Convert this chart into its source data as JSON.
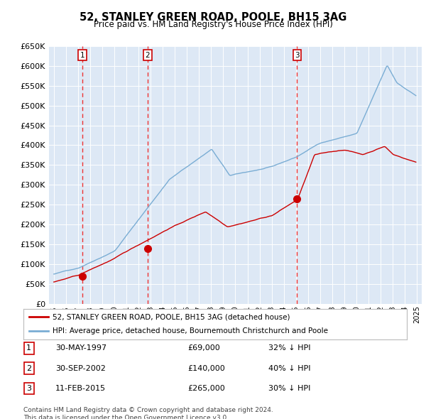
{
  "title": "52, STANLEY GREEN ROAD, POOLE, BH15 3AG",
  "subtitle": "Price paid vs. HM Land Registry's House Price Index (HPI)",
  "legend_property": "52, STANLEY GREEN ROAD, POOLE, BH15 3AG (detached house)",
  "legend_hpi": "HPI: Average price, detached house, Bournemouth Christchurch and Poole",
  "footer": "Contains HM Land Registry data © Crown copyright and database right 2024.\nThis data is licensed under the Open Government Licence v3.0.",
  "sales": [
    {
      "num": 1,
      "date_num": 1997.37,
      "price": 69000,
      "label": "30-MAY-1997",
      "pct": "32% ↓ HPI"
    },
    {
      "num": 2,
      "date_num": 2002.75,
      "price": 140000,
      "label": "30-SEP-2002",
      "pct": "40% ↓ HPI"
    },
    {
      "num": 3,
      "date_num": 2015.1,
      "price": 265000,
      "label": "11-FEB-2015",
      "pct": "30% ↓ HPI"
    }
  ],
  "hpi_color": "#7aadd4",
  "property_color": "#cc0000",
  "vline_color": "#ee3333",
  "bg_color": "#dde8f5",
  "ylim": [
    0,
    650000
  ],
  "yticks": [
    0,
    50000,
    100000,
    150000,
    200000,
    250000,
    300000,
    350000,
    400000,
    450000,
    500000,
    550000,
    600000,
    650000
  ],
  "xlim_start": 1994.6,
  "xlim_end": 2025.4
}
